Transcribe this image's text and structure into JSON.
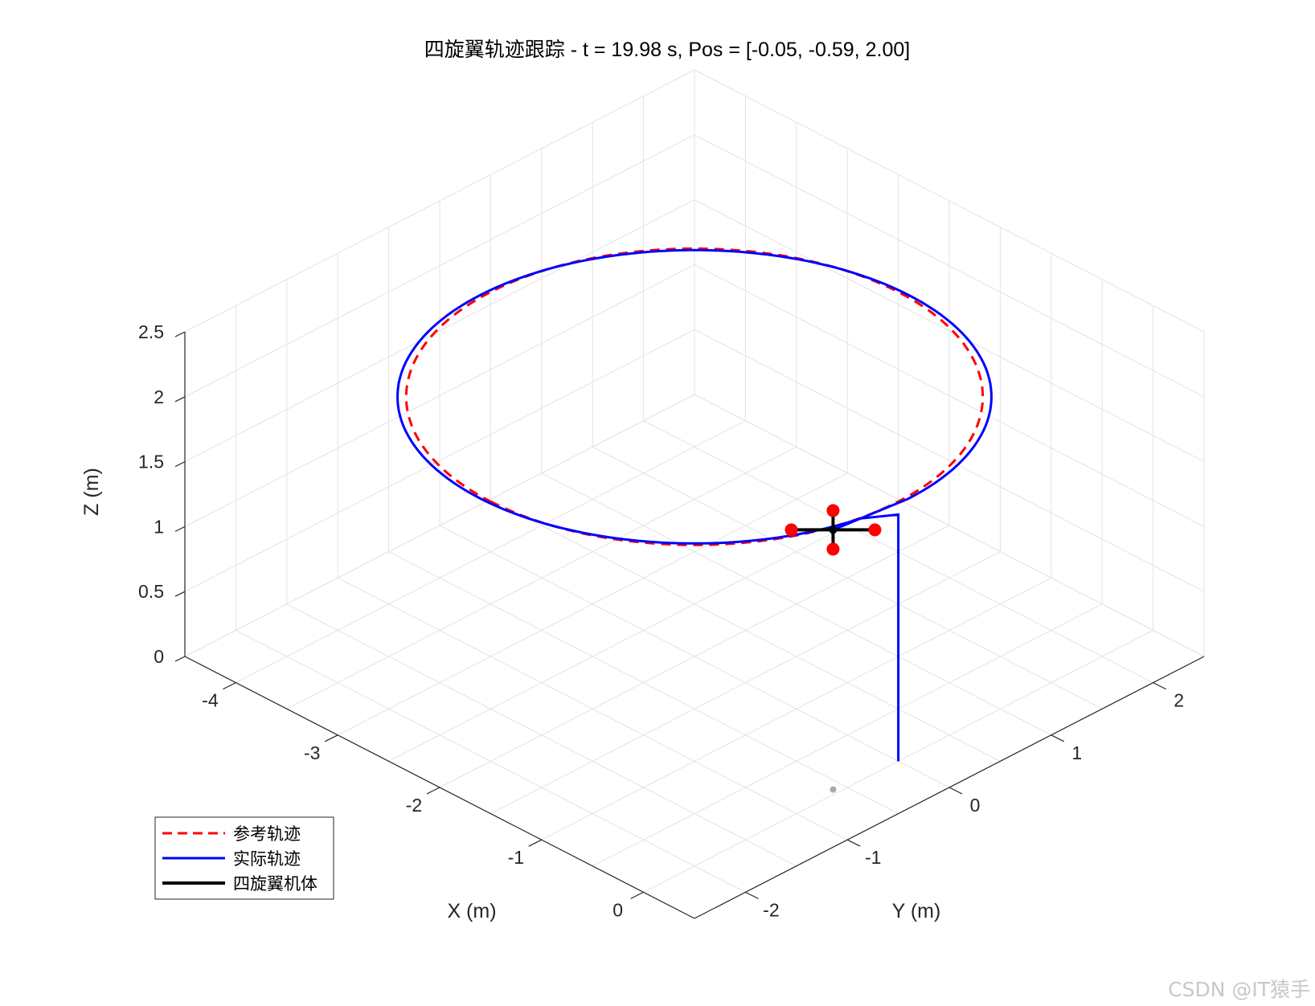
{
  "chart_data": {
    "type": "line3d",
    "title": "四旋翼轨迹跟踪 - t = 19.98 s, Pos = [-0.05, -0.59, 2.00]",
    "xlabel": "X (m)",
    "ylabel": "Y (m)",
    "zlabel": "Z (m)",
    "xlim": [
      -4.5,
      0.5
    ],
    "ylim": [
      -2.5,
      2.5
    ],
    "zlim": [
      0,
      2.5
    ],
    "xticks": [
      -4,
      -3,
      -2,
      -1,
      0
    ],
    "yticks": [
      -2,
      -1,
      0,
      1,
      2
    ],
    "zticks": [
      0,
      0.5,
      1,
      1.5,
      2,
      2.5
    ],
    "xtick_labels": [
      "-4",
      "-3",
      "-2",
      "-1",
      "0"
    ],
    "ytick_labels": [
      "-2",
      "-1",
      "0",
      "1",
      "2"
    ],
    "ztick_labels": [
      "0",
      "0.5",
      "1",
      "1.5",
      "2",
      "2.5"
    ],
    "grid": true,
    "legend_position": "bottom-left",
    "reference": {
      "name": "参考轨迹",
      "color": "#ff0000",
      "style": "dashed",
      "center": [
        -2,
        0,
        2
      ],
      "radius": 2,
      "start_angle_deg": -90,
      "end_angle_deg": 270
    },
    "actual": {
      "name": "实际轨迹",
      "color": "#0000ff",
      "style": "solid",
      "vertical_segment": {
        "x": 0,
        "y": 0,
        "z_from": 0,
        "z_to": 2
      },
      "loop": {
        "center": [
          -2,
          0,
          2
        ],
        "radius": 2.02,
        "start_angle_deg": -10,
        "end_angle_deg": -88
      }
    },
    "quadrotor": {
      "name": "四旋翼机体",
      "color": "#000000",
      "rotor_color": "#ff0000",
      "position": [
        -0.05,
        -0.59,
        2.0
      ],
      "arm_length": 0.4
    },
    "ground_marker": {
      "position": [
        -0.05,
        -0.59,
        0
      ],
      "color": "#aaaaaa"
    }
  },
  "legend": {
    "items": [
      {
        "label": "参考轨迹"
      },
      {
        "label": "实际轨迹"
      },
      {
        "label": "四旋翼机体"
      }
    ]
  },
  "watermark": "CSDN @IT猿手"
}
